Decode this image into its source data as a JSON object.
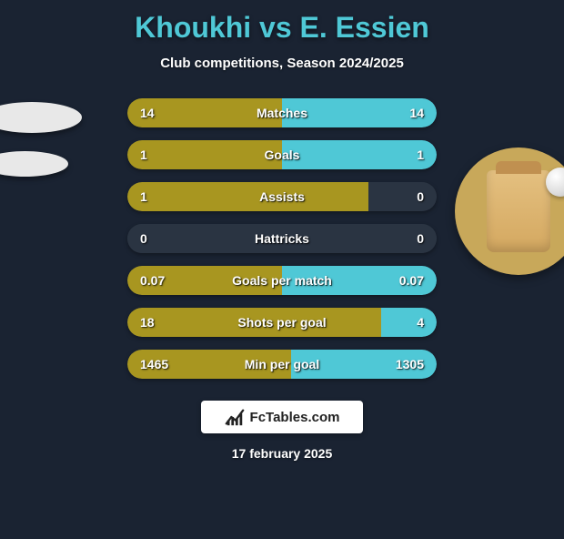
{
  "title": "Khoukhi vs E. Essien",
  "subtitle": "Club competitions, Season 2024/2025",
  "date": "17 february 2025",
  "footer_brand": "FcTables.com",
  "colors": {
    "background": "#1a2332",
    "title": "#4fc8d6",
    "bar_left": "#a89620",
    "bar_right": "#4fc8d6",
    "bar_empty": "#2a3442"
  },
  "stats": [
    {
      "label": "Matches",
      "left_value": "14",
      "right_value": "14",
      "left_pct": 50,
      "right_color": "#4fc8d6"
    },
    {
      "label": "Goals",
      "left_value": "1",
      "right_value": "1",
      "left_pct": 50,
      "right_color": "#4fc8d6"
    },
    {
      "label": "Assists",
      "left_value": "1",
      "right_value": "0",
      "left_pct": 78,
      "right_color": "#2a3442"
    },
    {
      "label": "Hattricks",
      "left_value": "0",
      "right_value": "0",
      "left_pct": 0,
      "right_color": "#2a3442"
    },
    {
      "label": "Goals per match",
      "left_value": "0.07",
      "right_value": "0.07",
      "left_pct": 50,
      "right_color": "#4fc8d6"
    },
    {
      "label": "Shots per goal",
      "left_value": "18",
      "right_value": "4",
      "left_pct": 82,
      "right_color": "#4fc8d6"
    },
    {
      "label": "Min per goal",
      "left_value": "1465",
      "right_value": "1305",
      "left_pct": 53,
      "right_color": "#4fc8d6"
    }
  ]
}
